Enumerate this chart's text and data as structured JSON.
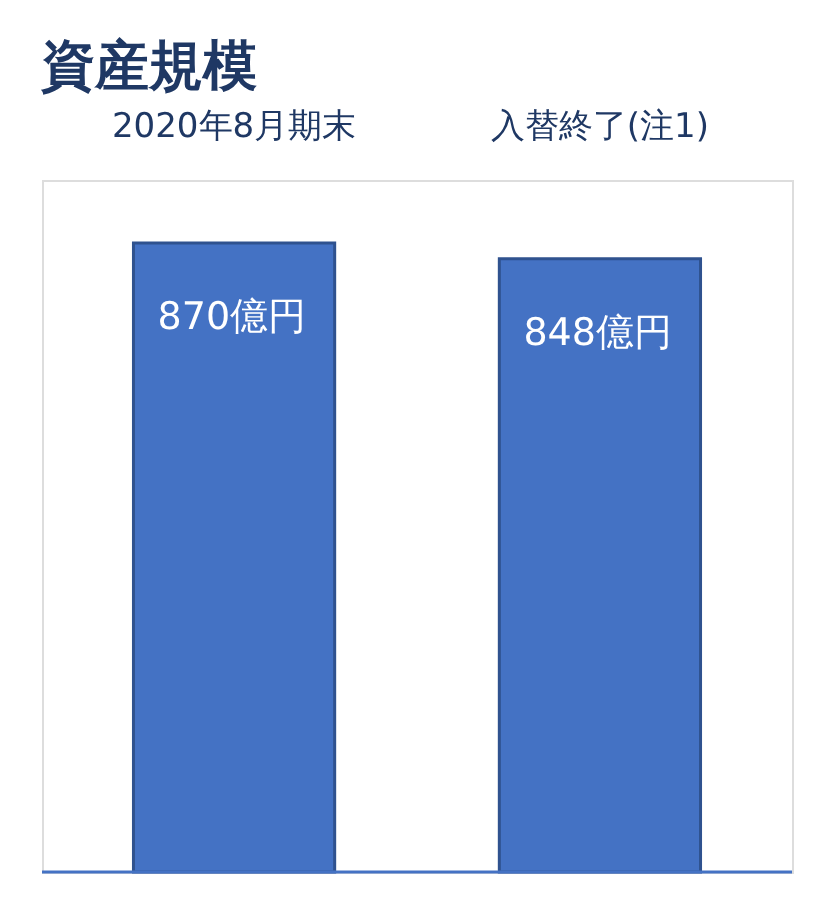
{
  "chart_data": {
    "type": "bar",
    "title": "資産規模",
    "categories": [
      "2020年8月期末",
      "入替終了(注1)"
    ],
    "series": [
      {
        "color": "#4472c4",
        "values": [
          870,
          848
        ]
      }
    ],
    "annotations": [
      {
        "text": "億円",
        "x": "2020年8月期末",
        "y": 870
      },
      {
        "text": "億円",
        "x": "入替終了(注1)",
        "y": 848
      }
    ],
    "data_labels": true,
    "tick_labels": "x"
  }
}
